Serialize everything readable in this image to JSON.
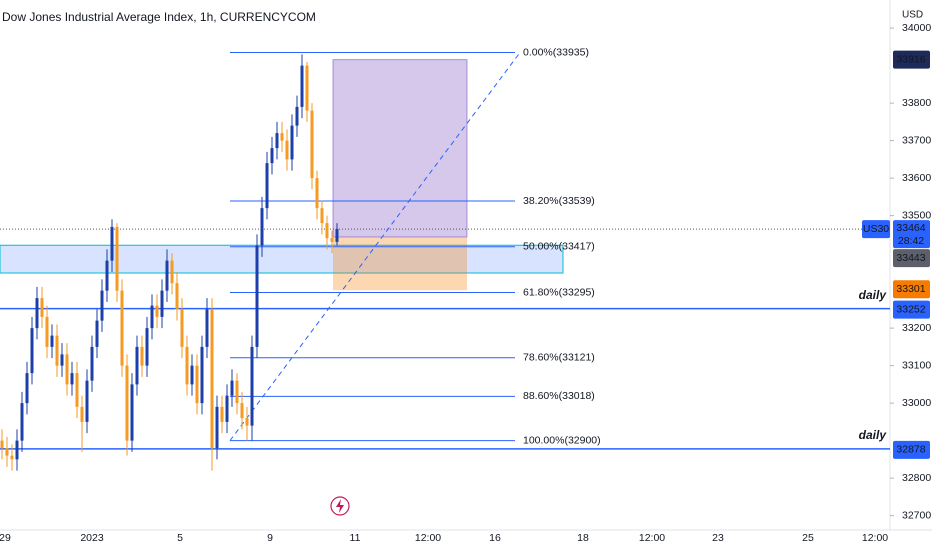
{
  "chart_data": {
    "type": "candlestick",
    "title": "Dow Jones Industrial Average Index, 1h, CURRENCYCOM",
    "currency": "USD",
    "symbol": "US30",
    "countdown": "28:42",
    "up_color": "#1c3faa",
    "down_color": "#f59a23",
    "ylim": [
      32675,
      34075
    ],
    "yticks": [
      32700,
      32800,
      33000,
      33100,
      33200,
      33500,
      33600,
      33700,
      33800,
      34000
    ],
    "x_labels": [
      "29",
      "2023",
      "5",
      "9",
      "11",
      "12:00",
      "16",
      "18",
      "12:00",
      "23",
      "25",
      "12:00"
    ],
    "open": [
      32900,
      32880,
      32860,
      32850,
      32900,
      33000,
      33080,
      33200,
      33280,
      33230,
      33150,
      33180,
      33100,
      33130,
      33050,
      33080,
      32990,
      32950,
      33060,
      33150,
      33220,
      33300,
      33380,
      33470,
      33300,
      33100,
      32900,
      33050,
      33150,
      33100,
      33200,
      33260,
      33230,
      33300,
      33380,
      33320,
      33250,
      33150,
      33050,
      33100,
      33000,
      33150,
      33250,
      32880,
      32990,
      32950,
      33020,
      33060,
      33000,
      32960,
      32940,
      33150,
      33420,
      33520,
      33640,
      33680,
      33720,
      33700,
      33650,
      33740,
      33790,
      33900,
      33780,
      33600,
      33520,
      33480,
      33440,
      33430
    ],
    "high": [
      32930,
      32910,
      32890,
      32930,
      33030,
      33110,
      33230,
      33310,
      33310,
      33260,
      33210,
      33210,
      33160,
      33160,
      33110,
      33110,
      33020,
      33090,
      33180,
      33250,
      33330,
      33410,
      33490,
      33480,
      33330,
      33130,
      33080,
      33180,
      33180,
      33230,
      33290,
      33290,
      33330,
      33410,
      33400,
      33350,
      33280,
      33180,
      33130,
      33130,
      33180,
      33280,
      33280,
      33020,
      33020,
      33050,
      33090,
      33080,
      33030,
      32990,
      33180,
      33450,
      33550,
      33670,
      33710,
      33750,
      33750,
      33730,
      33770,
      33820,
      33930,
      33910,
      33800,
      33620,
      33540,
      33500,
      33460,
      33480
    ],
    "low": [
      32850,
      32830,
      32820,
      32820,
      32870,
      32970,
      33050,
      33170,
      33200,
      33120,
      33120,
      33070,
      33070,
      33020,
      33020,
      32960,
      32870,
      32920,
      33030,
      33120,
      33190,
      33270,
      33350,
      33270,
      33070,
      32860,
      32870,
      33020,
      33070,
      33070,
      33170,
      33200,
      33200,
      33270,
      33290,
      33220,
      33120,
      33020,
      33020,
      32970,
      32970,
      33120,
      32820,
      32850,
      32920,
      32920,
      32990,
      32970,
      32930,
      32900,
      32900,
      33120,
      33390,
      33490,
      33610,
      33650,
      33670,
      33620,
      33620,
      33710,
      33760,
      33750,
      33570,
      33490,
      33450,
      33410,
      33400,
      33420
    ],
    "close": [
      32880,
      32860,
      32850,
      32900,
      33000,
      33080,
      33200,
      33280,
      33230,
      33150,
      33180,
      33100,
      33130,
      33050,
      33080,
      32990,
      32950,
      33060,
      33150,
      33220,
      33300,
      33380,
      33470,
      33300,
      33100,
      32900,
      33050,
      33150,
      33100,
      33200,
      33260,
      33230,
      33300,
      33380,
      33320,
      33250,
      33150,
      33050,
      33100,
      33000,
      33150,
      33250,
      32880,
      32990,
      32950,
      33020,
      33060,
      33000,
      32960,
      32940,
      33150,
      33420,
      33520,
      33640,
      33680,
      33720,
      33700,
      33650,
      33740,
      33790,
      33900,
      33780,
      33600,
      33520,
      33480,
      33440,
      33430,
      33464
    ],
    "fib_levels": [
      {
        "value": 33935,
        "label": "0.00%(33935)"
      },
      {
        "value": 33539,
        "label": "38.20%(33539)"
      },
      {
        "value": 33417,
        "label": "50.00%(33417)"
      },
      {
        "value": 33295,
        "label": "61.80%(33295)"
      },
      {
        "value": 33121,
        "label": "78.60%(33121)"
      },
      {
        "value": 33018,
        "label": "88.60%(33018)"
      },
      {
        "value": 32900,
        "label": "100.00%(32900)"
      }
    ],
    "zone": [
      33421,
      33347
    ],
    "position": {
      "target": {
        "value": 33916,
        "label": "33916"
      },
      "entry": {
        "value": 33443,
        "label": "33443"
      },
      "stop": {
        "value": 33301,
        "label": "33301"
      }
    },
    "last_price": {
      "value": 33464,
      "label": "33464"
    },
    "levels": [
      {
        "value": 33252,
        "label": "33252",
        "annotation": "daily"
      },
      {
        "value": 32878,
        "label": "32878",
        "annotation": "daily"
      }
    ]
  }
}
